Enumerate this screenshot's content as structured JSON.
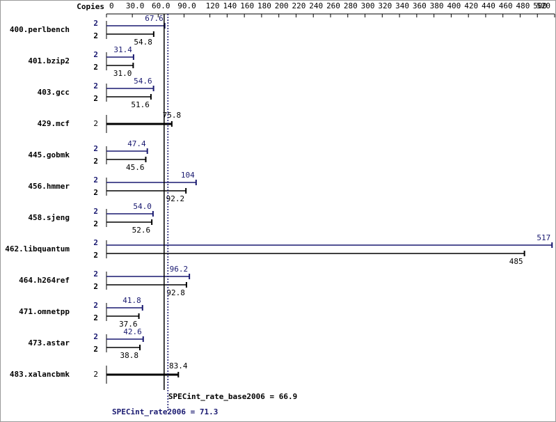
{
  "chart_data": {
    "type": "bar",
    "copies_label": "Copies",
    "categories": [
      "400.perlbench",
      "401.bzip2",
      "403.gcc",
      "429.mcf",
      "445.gobmk",
      "456.hmmer",
      "458.sjeng",
      "462.libquantum",
      "464.h264ref",
      "471.omnetpp",
      "473.astar",
      "483.xalancbmk"
    ],
    "series": [
      {
        "name": "SPECint_rate2006",
        "color": "#191970",
        "copies": [
          2,
          2,
          2,
          null,
          2,
          2,
          2,
          2,
          2,
          2,
          2,
          null
        ],
        "values": [
          67.6,
          31.4,
          54.6,
          null,
          47.4,
          104,
          54.0,
          517,
          96.2,
          41.8,
          42.6,
          null
        ],
        "value_labels": [
          "67.6",
          "31.4",
          "54.6",
          null,
          "47.4",
          "104",
          "54.0",
          "517",
          "96.2",
          "41.8",
          "42.6",
          null
        ]
      },
      {
        "name": "SPECint_rate_base2006",
        "color": "#000000",
        "copies": [
          2,
          2,
          2,
          2,
          2,
          2,
          2,
          2,
          2,
          2,
          2,
          2
        ],
        "values": [
          54.8,
          31.0,
          51.6,
          75.8,
          45.6,
          92.2,
          52.6,
          485,
          92.8,
          37.6,
          38.8,
          83.4
        ],
        "value_labels": [
          "54.8",
          "31.0",
          "51.6",
          "75.8",
          "45.6",
          "92.2",
          "52.6",
          "485",
          "92.8",
          "37.6",
          "38.8",
          "83.4"
        ]
      }
    ],
    "reference_lines": [
      {
        "label": "SPECint_rate_base2006 = 66.9",
        "value": 66.9,
        "color": "#000000",
        "dashed": false
      },
      {
        "label": "SPECint_rate2006 = 71.3",
        "value": 71.3,
        "color": "#191970",
        "dashed": true
      }
    ],
    "xlim": [
      0,
      520
    ],
    "xticks": [
      {
        "value": 0,
        "label": "0"
      },
      {
        "value": 30,
        "label": "30.0"
      },
      {
        "value": 60,
        "label": "60.0"
      },
      {
        "value": 90,
        "label": "90.0"
      },
      120,
      140,
      160,
      180,
      200,
      220,
      240,
      260,
      280,
      300,
      320,
      340,
      360,
      380,
      400,
      420,
      440,
      460,
      480,
      500,
      520
    ]
  }
}
